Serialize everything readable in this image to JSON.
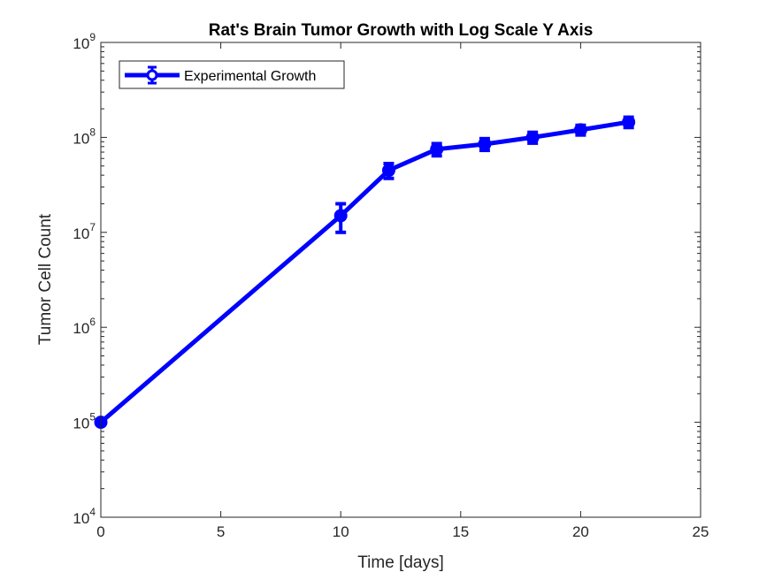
{
  "chart_data": {
    "type": "line",
    "title": "Rat's Brain Tumor Growth with Log Scale Y Axis",
    "xlabel": "Time [days]",
    "ylabel": "Tumor Cell Count",
    "xlim": [
      0,
      25
    ],
    "ylim": [
      10000,
      1000000000
    ],
    "yscale": "log",
    "x_ticks": [
      0,
      5,
      10,
      15,
      20,
      25
    ],
    "x_tick_labels": [
      "0",
      "5",
      "10",
      "15",
      "20",
      "25"
    ],
    "y_ticks": [
      10000,
      100000,
      1000000,
      10000000,
      100000000,
      1000000000
    ],
    "y_tick_labels": [
      {
        "base": "10",
        "exp": "4"
      },
      {
        "base": "10",
        "exp": "5"
      },
      {
        "base": "10",
        "exp": "6"
      },
      {
        "base": "10",
        "exp": "7"
      },
      {
        "base": "10",
        "exp": "8"
      },
      {
        "base": "10",
        "exp": "9"
      }
    ],
    "grid": false,
    "legend_position": "top-left",
    "series": [
      {
        "name": "Experimental Growth",
        "color": "#0000ff",
        "marker": "circle",
        "error_bars": true,
        "x": [
          0,
          10,
          12,
          14,
          16,
          18,
          20,
          22
        ],
        "y": [
          100000,
          15000000,
          45000000,
          75000000,
          85000000,
          100000000,
          120000000,
          145000000
        ],
        "y_lower": [
          100000,
          10000000,
          37000000,
          64000000,
          73000000,
          87000000,
          106000000,
          127000000
        ],
        "y_upper": [
          100000,
          20000000,
          53000000,
          86000000,
          97000000,
          113000000,
          134000000,
          163000000
        ]
      }
    ]
  }
}
